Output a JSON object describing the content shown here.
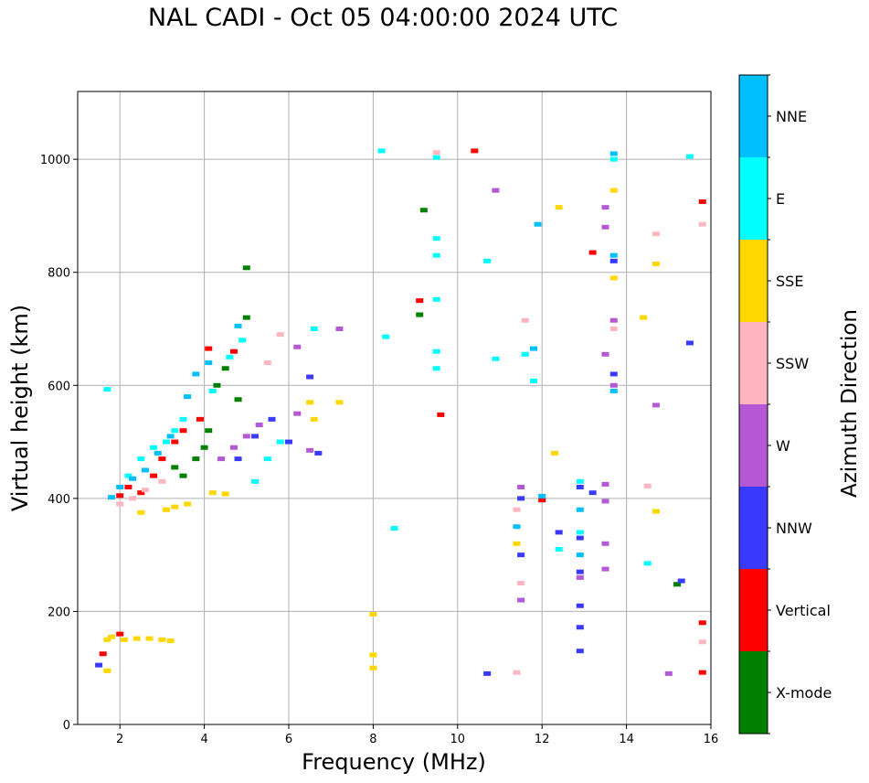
{
  "chart_data": {
    "type": "scatter",
    "title": "NAL CADI - Oct 05 04:00:00 2024 UTC",
    "xlabel": "Frequency (MHz)",
    "ylabel": "Virtual height (km)",
    "xlim": [
      1,
      16
    ],
    "ylim": [
      0,
      1120
    ],
    "xticks": [
      2,
      4,
      6,
      8,
      10,
      12,
      14,
      16
    ],
    "yticks": [
      0,
      200,
      400,
      600,
      800,
      1000
    ],
    "grid": true,
    "colorbar": {
      "label": "Azimuth Direction",
      "position": "right",
      "categories": [
        {
          "name": "X-mode",
          "color": "#008000"
        },
        {
          "name": "Vertical",
          "color": "#ff0000"
        },
        {
          "name": "NNW",
          "color": "#3a3aff"
        },
        {
          "name": "W",
          "color": "#b458d6"
        },
        {
          "name": "SSW",
          "color": "#ffb6c1"
        },
        {
          "name": "SSE",
          "color": "#ffd700"
        },
        {
          "name": "E",
          "color": "#00ffff"
        },
        {
          "name": "NNE",
          "color": "#00bfff"
        }
      ]
    },
    "series": [
      {
        "name": "X-mode",
        "points": [
          [
            3.5,
            440
          ],
          [
            3.8,
            470
          ],
          [
            4.1,
            520
          ],
          [
            4.3,
            600
          ],
          [
            4.5,
            630
          ],
          [
            4.8,
            575
          ],
          [
            5.0,
            720
          ],
          [
            5.0,
            808
          ],
          [
            9.2,
            910
          ],
          [
            9.1,
            725
          ],
          [
            15.2,
            248
          ],
          [
            3.3,
            455
          ],
          [
            4.0,
            490
          ]
        ]
      },
      {
        "name": "Vertical",
        "points": [
          [
            2.0,
            405
          ],
          [
            2.2,
            420
          ],
          [
            2.5,
            410
          ],
          [
            2.8,
            440
          ],
          [
            3.0,
            470
          ],
          [
            3.3,
            500
          ],
          [
            3.5,
            520
          ],
          [
            3.9,
            540
          ],
          [
            4.1,
            665
          ],
          [
            4.7,
            660
          ],
          [
            9.1,
            750
          ],
          [
            9.6,
            548
          ],
          [
            10.4,
            1015
          ],
          [
            13.2,
            835
          ],
          [
            15.8,
            925
          ],
          [
            15.8,
            180
          ],
          [
            15.8,
            92
          ],
          [
            12.0,
            397
          ],
          [
            1.6,
            125
          ],
          [
            2.0,
            160
          ]
        ]
      },
      {
        "name": "NNW",
        "points": [
          [
            4.8,
            470
          ],
          [
            5.2,
            510
          ],
          [
            5.6,
            540
          ],
          [
            6.0,
            500
          ],
          [
            6.5,
            615
          ],
          [
            6.7,
            480
          ],
          [
            11.5,
            300
          ],
          [
            11.5,
            400
          ],
          [
            12.9,
            420
          ],
          [
            12.9,
            330
          ],
          [
            12.9,
            270
          ],
          [
            12.9,
            210
          ],
          [
            12.9,
            130
          ],
          [
            13.7,
            620
          ],
          [
            13.7,
            820
          ],
          [
            13.2,
            410
          ],
          [
            15.5,
            675
          ],
          [
            15.3,
            254
          ],
          [
            12.4,
            340
          ],
          [
            10.7,
            90
          ],
          [
            1.5,
            105
          ],
          [
            12.9,
            172
          ]
        ]
      },
      {
        "name": "W",
        "points": [
          [
            4.4,
            470
          ],
          [
            4.7,
            490
          ],
          [
            5.0,
            510
          ],
          [
            5.3,
            530
          ],
          [
            6.2,
            550
          ],
          [
            6.2,
            668
          ],
          [
            6.5,
            485
          ],
          [
            10.9,
            945
          ],
          [
            11.5,
            220
          ],
          [
            11.5,
            420
          ],
          [
            13.7,
            715
          ],
          [
            13.7,
            600
          ],
          [
            13.5,
            915
          ],
          [
            13.5,
            880
          ],
          [
            13.5,
            655
          ],
          [
            13.5,
            425
          ],
          [
            13.5,
            395
          ],
          [
            13.5,
            320
          ],
          [
            13.5,
            275
          ],
          [
            14.7,
            565
          ],
          [
            15.0,
            90
          ],
          [
            12.9,
            260
          ],
          [
            7.2,
            700
          ]
        ]
      },
      {
        "name": "SSW",
        "points": [
          [
            2.0,
            390
          ],
          [
            2.3,
            400
          ],
          [
            2.6,
            415
          ],
          [
            3.0,
            430
          ],
          [
            5.5,
            640
          ],
          [
            5.8,
            690
          ],
          [
            11.6,
            715
          ],
          [
            11.4,
            380
          ],
          [
            11.4,
            92
          ],
          [
            11.5,
            250
          ],
          [
            13.7,
            700
          ],
          [
            14.5,
            422
          ],
          [
            14.7,
            868
          ],
          [
            15.8,
            885
          ],
          [
            15.8,
            146
          ],
          [
            9.5,
            1012
          ]
        ]
      },
      {
        "name": "SSE",
        "points": [
          [
            1.7,
            150
          ],
          [
            1.8,
            155
          ],
          [
            2.1,
            150
          ],
          [
            2.4,
            152
          ],
          [
            2.7,
            152
          ],
          [
            3.0,
            150
          ],
          [
            3.2,
            148
          ],
          [
            2.5,
            375
          ],
          [
            3.1,
            380
          ],
          [
            3.3,
            385
          ],
          [
            3.6,
            390
          ],
          [
            4.2,
            410
          ],
          [
            4.5,
            408
          ],
          [
            6.5,
            570
          ],
          [
            6.6,
            540
          ],
          [
            7.2,
            570
          ],
          [
            8.0,
            195
          ],
          [
            8.0,
            123
          ],
          [
            8.0,
            100
          ],
          [
            11.4,
            320
          ],
          [
            12.3,
            480
          ],
          [
            12.4,
            915
          ],
          [
            13.7,
            945
          ],
          [
            13.7,
            790
          ],
          [
            14.4,
            720
          ],
          [
            14.7,
            815
          ],
          [
            14.7,
            377
          ],
          [
            1.7,
            95
          ]
        ]
      },
      {
        "name": "E",
        "points": [
          [
            2.2,
            440
          ],
          [
            2.5,
            470
          ],
          [
            2.8,
            490
          ],
          [
            3.1,
            500
          ],
          [
            3.3,
            520
          ],
          [
            3.5,
            540
          ],
          [
            4.2,
            590
          ],
          [
            4.6,
            650
          ],
          [
            4.9,
            680
          ],
          [
            5.2,
            430
          ],
          [
            5.5,
            470
          ],
          [
            5.8,
            500
          ],
          [
            6.6,
            700
          ],
          [
            8.2,
            1015
          ],
          [
            8.3,
            686
          ],
          [
            8.5,
            347
          ],
          [
            9.5,
            1003
          ],
          [
            9.5,
            860
          ],
          [
            9.5,
            830
          ],
          [
            9.5,
            752
          ],
          [
            9.5,
            660
          ],
          [
            9.5,
            630
          ],
          [
            10.7,
            820
          ],
          [
            10.9,
            647
          ],
          [
            11.6,
            655
          ],
          [
            11.8,
            608
          ],
          [
            12.4,
            310
          ],
          [
            12.9,
            430
          ],
          [
            12.9,
            340
          ],
          [
            13.7,
            1000
          ],
          [
            14.5,
            285
          ],
          [
            15.5,
            1005
          ],
          [
            1.7,
            593
          ]
        ]
      },
      {
        "name": "NNE",
        "points": [
          [
            2.0,
            420
          ],
          [
            2.3,
            435
          ],
          [
            2.6,
            450
          ],
          [
            2.9,
            480
          ],
          [
            3.2,
            510
          ],
          [
            3.6,
            580
          ],
          [
            3.8,
            620
          ],
          [
            4.1,
            640
          ],
          [
            4.8,
            705
          ],
          [
            11.9,
            885
          ],
          [
            11.8,
            665
          ],
          [
            12.0,
            404
          ],
          [
            12.9,
            380
          ],
          [
            12.9,
            300
          ],
          [
            13.7,
            1010
          ],
          [
            13.7,
            830
          ],
          [
            13.7,
            590
          ],
          [
            11.4,
            350
          ],
          [
            1.8,
            402
          ]
        ]
      }
    ]
  }
}
